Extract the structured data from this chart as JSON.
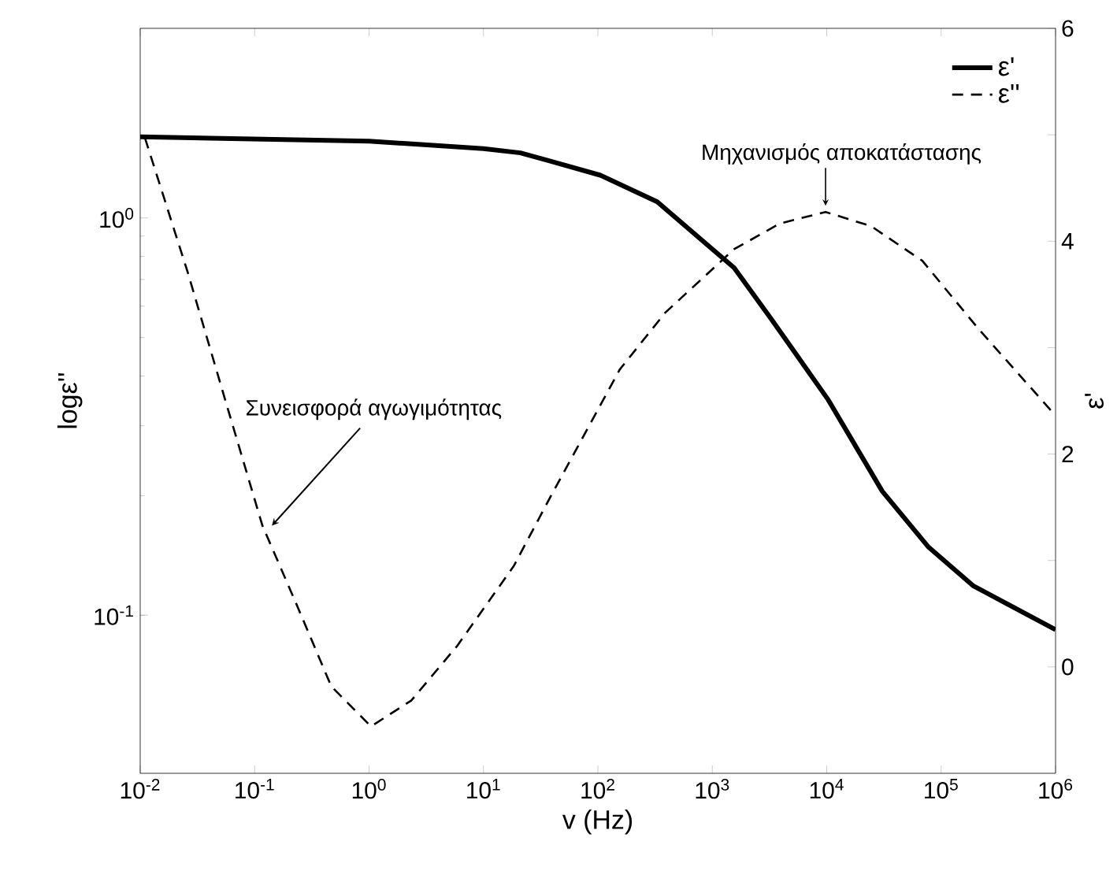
{
  "chart_data": {
    "type": "line",
    "xlabel": "v (Hz)",
    "ylabel": "logε''",
    "y2label": "ε'",
    "log": "xy",
    "legend": "top right",
    "grid": false,
    "xlim": [
      0.01,
      1000000
    ],
    "xticks": [
      {
        "value": 0.01,
        "label": "10$^{-2}$"
      },
      {
        "value": 0.1,
        "label": "10$^{-1}$"
      },
      {
        "value": 1,
        "label": "10$^{0}$"
      },
      {
        "value": 10,
        "label": "10$^{1}$"
      },
      {
        "value": 100,
        "label": "10$^{2}$"
      },
      {
        "value": 1000,
        "label": "10$^{3}$"
      },
      {
        "value": 10000,
        "label": "10$^{4}$"
      },
      {
        "value": 100000,
        "label": "10$^{5}$"
      },
      {
        "value": 1000000,
        "label": "10$^{6}$"
      }
    ],
    "ylim": [
      0.04,
      3
    ],
    "yticks": [
      {
        "value": 0.1,
        "label": "10$^{-1}$"
      },
      {
        "value": 1,
        "label": "10$^{0}$"
      }
    ],
    "y2lim": [
      -1,
      6
    ],
    "y2ticks": [
      0,
      {
        "value": 1,
        "label": null
      },
      2,
      {
        "value": 3,
        "label": null
      },
      4,
      {
        "value": 5,
        "label": null
      },
      6
    ],
    "series": [
      {
        "name": "ε'",
        "color": "#000000",
        "axis": "y2",
        "line_style": "solid",
        "x": [
          0.01,
          1,
          10,
          21,
          39,
          105,
          330,
          1040,
          1550,
          3270,
          10300,
          30600,
          76900,
          192000,
          1000000
        ],
        "values": [
          4.98,
          4.94,
          4.87,
          4.83,
          4.75,
          4.62,
          4.37,
          3.91,
          3.75,
          3.27,
          2.51,
          1.65,
          1.13,
          0.76,
          0.35
        ]
      },
      {
        "name": "ε''",
        "color": "#000000",
        "axis": "y",
        "line_style": "dashed",
        "x": [
          0.011,
          0.026,
          0.059,
          0.117,
          0.234,
          0.468,
          1.04,
          2.34,
          5.89,
          18.4,
          39,
          155,
          389,
          1550,
          3890,
          9770,
          24500,
          68500,
          214000,
          1000000
        ],
        "values": [
          1.59,
          0.73,
          0.327,
          0.168,
          0.106,
          0.0662,
          0.0525,
          0.061,
          0.0837,
          0.133,
          0.2,
          0.415,
          0.578,
          0.834,
          0.968,
          1.035,
          0.953,
          0.78,
          0.524,
          0.318
        ]
      }
    ],
    "annotations": [
      {
        "text": "Συνεισφορά αγωγιμότητας",
        "x": 0.117,
        "y": 0.168
      },
      {
        "text": "Μηχανισμός αποκατάστασης",
        "x": 9770,
        "y": 1.035
      }
    ]
  }
}
